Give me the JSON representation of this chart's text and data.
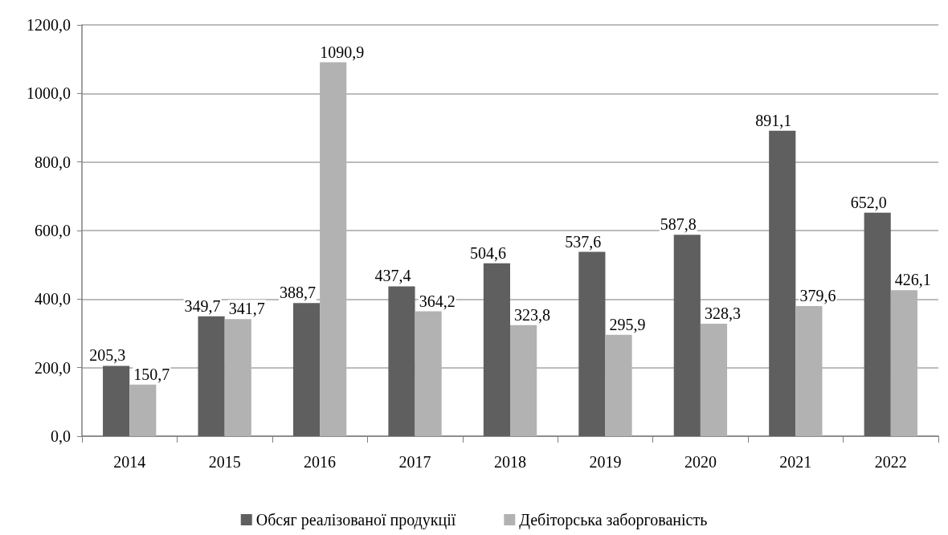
{
  "chart_data": {
    "type": "bar",
    "categories": [
      "2014",
      "2015",
      "2016",
      "2017",
      "2018",
      "2019",
      "2020",
      "2021",
      "2022"
    ],
    "series": [
      {
        "name": "Обсяг реалізованої продукції",
        "color": "#5f5f5f",
        "values": [
          205.3,
          349.7,
          388.7,
          437.4,
          504.6,
          537.6,
          587.8,
          891.1,
          652.0
        ],
        "value_labels": [
          "205,3",
          "349,7",
          "388,7",
          "437,4",
          "504,6",
          "537,6",
          "587,8",
          "891,1",
          "652,0"
        ]
      },
      {
        "name": "Дебіторська заборгованість",
        "color": "#b2b2b2",
        "values": [
          150.7,
          341.7,
          1090.9,
          364.2,
          323.8,
          295.9,
          328.3,
          379.6,
          426.1
        ],
        "value_labels": [
          "150,7",
          "341,7",
          "1090,9",
          "364,2",
          "323,8",
          "295,9",
          "328,3",
          "379,6",
          "426,1"
        ]
      }
    ],
    "ylim": [
      0,
      1200
    ],
    "yticks": [
      {
        "value": 0,
        "label": "0,0"
      },
      {
        "value": 200,
        "label": "200,0"
      },
      {
        "value": 400,
        "label": "400,0"
      },
      {
        "value": 600,
        "label": "600,0"
      },
      {
        "value": 800,
        "label": "800,0"
      },
      {
        "value": 1000,
        "label": "1000,0"
      },
      {
        "value": 1200,
        "label": "1200,0"
      }
    ],
    "grid": "y",
    "legend": "bottom"
  }
}
